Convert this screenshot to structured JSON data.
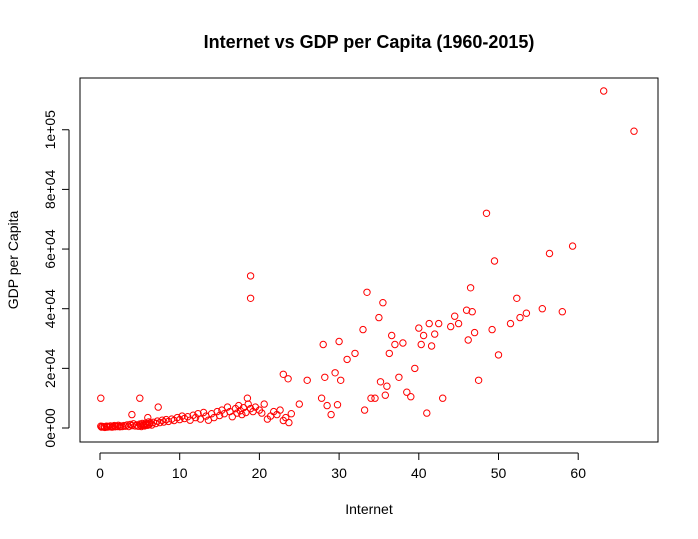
{
  "chart_data": {
    "type": "scatter",
    "title": "Internet vs GDP per Capita (1960-2015)",
    "xlabel": "Internet",
    "ylabel": "GDP per Capita",
    "xlim": [
      0,
      67
    ],
    "ylim": [
      0,
      113000
    ],
    "x_ticks": [
      0,
      10,
      20,
      30,
      40,
      50,
      60
    ],
    "x_tick_labels": [
      "0",
      "10",
      "20",
      "30",
      "40",
      "50",
      "60"
    ],
    "y_ticks": [
      0,
      20000,
      40000,
      60000,
      80000,
      100000
    ],
    "y_tick_labels": [
      "0e+00",
      "2e+04",
      "4e+04",
      "6e+04",
      "8e+04",
      "1e+05"
    ],
    "grid": false,
    "point_color": "#ff0000",
    "points": [
      [
        0.1,
        600
      ],
      [
        0.2,
        300
      ],
      [
        0.3,
        500
      ],
      [
        0.5,
        400
      ],
      [
        0.6,
        200
      ],
      [
        0.8,
        600
      ],
      [
        0.9,
        300
      ],
      [
        1.0,
        500
      ],
      [
        1.2,
        400
      ],
      [
        1.3,
        700
      ],
      [
        1.5,
        300
      ],
      [
        1.6,
        500
      ],
      [
        1.8,
        800
      ],
      [
        1.9,
        400
      ],
      [
        2.0,
        600
      ],
      [
        2.2,
        500
      ],
      [
        2.3,
        900
      ],
      [
        2.5,
        400
      ],
      [
        2.6,
        700
      ],
      [
        2.8,
        500
      ],
      [
        3.0,
        800
      ],
      [
        3.2,
        600
      ],
      [
        3.4,
        1000
      ],
      [
        3.6,
        500
      ],
      [
        3.8,
        1200
      ],
      [
        4.0,
        800
      ],
      [
        4.2,
        1400
      ],
      [
        4.4,
        700
      ],
      [
        4.6,
        1000
      ],
      [
        4.8,
        600
      ],
      [
        5.0,
        1300
      ],
      [
        5.1,
        900
      ],
      [
        5.2,
        500
      ],
      [
        5.3,
        1500
      ],
      [
        5.4,
        800
      ],
      [
        5.5,
        1100
      ],
      [
        5.6,
        700
      ],
      [
        5.7,
        1600
      ],
      [
        5.8,
        1000
      ],
      [
        5.9,
        1300
      ],
      [
        6.0,
        900
      ],
      [
        6.1,
        2000
      ],
      [
        6.2,
        1200
      ],
      [
        6.3,
        1700
      ],
      [
        6.5,
        1000
      ],
      [
        6.7,
        1900
      ],
      [
        7.0,
        1500
      ],
      [
        7.2,
        2300
      ],
      [
        7.5,
        1800
      ],
      [
        7.8,
        2600
      ],
      [
        8.0,
        2000
      ],
      [
        8.3,
        2800
      ],
      [
        8.6,
        2200
      ],
      [
        9.0,
        3000
      ],
      [
        9.3,
        2500
      ],
      [
        9.7,
        3500
      ],
      [
        10.0,
        2800
      ],
      [
        10.3,
        4000
      ],
      [
        10.6,
        3200
      ],
      [
        11.0,
        3800
      ],
      [
        11.3,
        2600
      ],
      [
        11.7,
        4300
      ],
      [
        12.0,
        3500
      ],
      [
        12.3,
        4800
      ],
      [
        12.6,
        3000
      ],
      [
        13.0,
        5200
      ],
      [
        13.3,
        4000
      ],
      [
        13.6,
        2600
      ],
      [
        14.0,
        4800
      ],
      [
        14.3,
        3500
      ],
      [
        14.7,
        5500
      ],
      [
        15.0,
        4200
      ],
      [
        15.3,
        6000
      ],
      [
        15.6,
        4800
      ],
      [
        16.0,
        7000
      ],
      [
        16.3,
        5500
      ],
      [
        16.6,
        3800
      ],
      [
        17.0,
        6500
      ],
      [
        17.2,
        5000
      ],
      [
        17.4,
        7500
      ],
      [
        17.6,
        5800
      ],
      [
        17.8,
        4500
      ],
      [
        18.0,
        6800
      ],
      [
        18.3,
        5200
      ],
      [
        18.6,
        8000
      ],
      [
        18.9,
        6500
      ],
      [
        19.2,
        5500
      ],
      [
        19.5,
        7000
      ],
      [
        20.0,
        6000
      ],
      [
        20.3,
        5000
      ],
      [
        20.6,
        8000
      ],
      [
        21.0,
        3000
      ],
      [
        21.4,
        4000
      ],
      [
        21.8,
        5500
      ],
      [
        22.2,
        4500
      ],
      [
        22.6,
        6000
      ],
      [
        23.0,
        2500
      ],
      [
        23.3,
        3500
      ],
      [
        23.7,
        1800
      ],
      [
        24.0,
        4800
      ],
      [
        0.1,
        10000
      ],
      [
        4.0,
        4500
      ],
      [
        5.0,
        10000
      ],
      [
        6.0,
        3500
      ],
      [
        7.3,
        7000
      ],
      [
        18.5,
        10000
      ],
      [
        18.9,
        51000
      ],
      [
        18.9,
        43500
      ],
      [
        23.0,
        18000
      ],
      [
        23.6,
        16500
      ],
      [
        25.0,
        8000
      ],
      [
        26.0,
        16000
      ],
      [
        27.8,
        10000
      ],
      [
        28.0,
        28000
      ],
      [
        28.2,
        17000
      ],
      [
        28.5,
        7500
      ],
      [
        29.0,
        4500
      ],
      [
        29.5,
        18500
      ],
      [
        29.8,
        7800
      ],
      [
        30.0,
        29000
      ],
      [
        30.2,
        16000
      ],
      [
        31.0,
        23000
      ],
      [
        32.0,
        25000
      ],
      [
        33.0,
        33000
      ],
      [
        33.2,
        6000
      ],
      [
        33.5,
        45500
      ],
      [
        34.0,
        10000
      ],
      [
        34.5,
        10000
      ],
      [
        35.0,
        37000
      ],
      [
        35.2,
        15500
      ],
      [
        35.5,
        42000
      ],
      [
        35.8,
        11000
      ],
      [
        36.0,
        14000
      ],
      [
        36.3,
        25000
      ],
      [
        36.6,
        31000
      ],
      [
        37.0,
        28000
      ],
      [
        37.5,
        17000
      ],
      [
        38.0,
        28500
      ],
      [
        38.5,
        12000
      ],
      [
        39.0,
        10500
      ],
      [
        39.5,
        20000
      ],
      [
        40.0,
        33500
      ],
      [
        40.3,
        28000
      ],
      [
        40.6,
        31000
      ],
      [
        41.0,
        5000
      ],
      [
        41.3,
        35000
      ],
      [
        41.6,
        27500
      ],
      [
        42.0,
        31500
      ],
      [
        42.5,
        35000
      ],
      [
        43.0,
        10000
      ],
      [
        44.0,
        34000
      ],
      [
        44.5,
        37500
      ],
      [
        45.0,
        35000
      ],
      [
        46.0,
        39500
      ],
      [
        46.2,
        29500
      ],
      [
        46.5,
        47000
      ],
      [
        46.7,
        39000
      ],
      [
        47.0,
        32000
      ],
      [
        47.5,
        16000
      ],
      [
        48.5,
        72000
      ],
      [
        49.2,
        33000
      ],
      [
        49.5,
        56000
      ],
      [
        50.0,
        24500
      ],
      [
        51.5,
        35000
      ],
      [
        52.3,
        43500
      ],
      [
        52.7,
        37000
      ],
      [
        53.5,
        38500
      ],
      [
        55.5,
        40000
      ],
      [
        56.4,
        58500
      ],
      [
        58.0,
        39000
      ],
      [
        59.3,
        61000
      ],
      [
        63.2,
        113000
      ],
      [
        67.0,
        99500
      ]
    ]
  }
}
